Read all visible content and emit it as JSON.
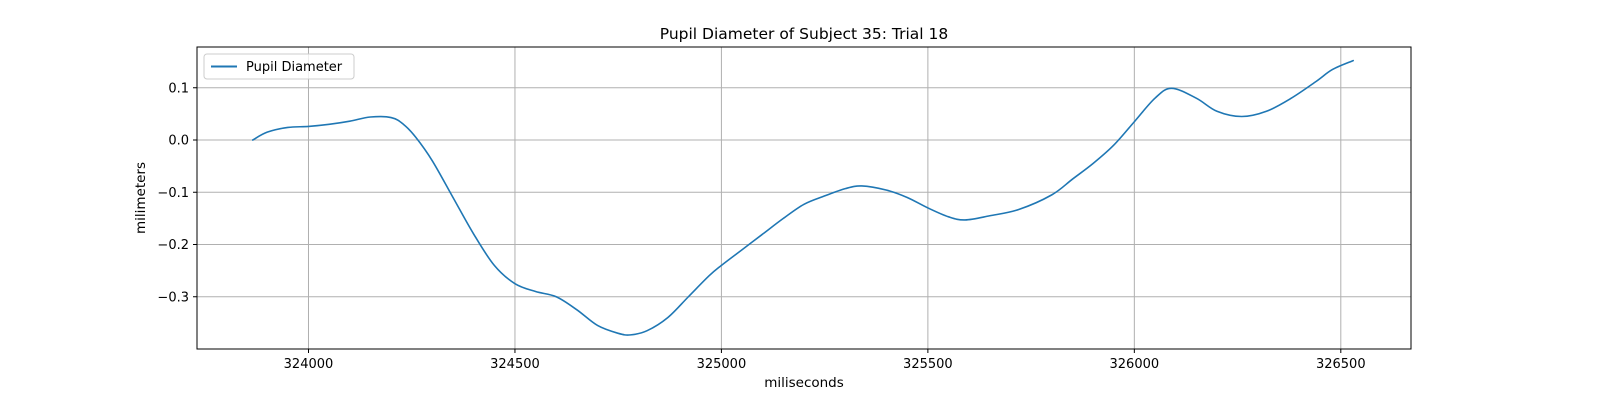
{
  "chart_data": {
    "type": "line",
    "title": "Pupil Diameter of Subject 35: Trial 18",
    "xlabel": "miliseconds",
    "ylabel": "milimeters",
    "xlim": [
      323730,
      326670
    ],
    "ylim": [
      -0.4,
      0.178
    ],
    "xticks": [
      324000,
      324500,
      325000,
      325500,
      326000,
      326500
    ],
    "xtick_labels": [
      "324000",
      "324500",
      "325000",
      "325500",
      "326000",
      "326500"
    ],
    "yticks": [
      0.1,
      0.0,
      -0.1,
      -0.2,
      -0.3
    ],
    "ytick_labels": [
      "0.1",
      "0.0",
      "−0.1",
      "−0.2",
      "−0.3"
    ],
    "grid": true,
    "legend_position": "upper-left",
    "series_color": "#1f77b4",
    "series": [
      {
        "name": "Pupil Diameter",
        "x": [
          323865,
          323900,
          323950,
          324000,
          324050,
          324100,
          324150,
          324200,
          324230,
          324260,
          324300,
          324350,
          324400,
          324450,
          324500,
          324550,
          324600,
          324650,
          324700,
          324750,
          324780,
          324820,
          324870,
          324920,
          324970,
          325000,
          325050,
          325100,
          325150,
          325200,
          325250,
          325300,
          325340,
          325400,
          325450,
          325500,
          325550,
          325590,
          325650,
          325720,
          325800,
          325850,
          325900,
          325950,
          326000,
          326050,
          326090,
          326150,
          326200,
          326260,
          326320,
          326380,
          326440,
          326480,
          326530
        ],
        "y": [
          0.0,
          0.015,
          0.024,
          0.026,
          0.03,
          0.036,
          0.044,
          0.043,
          0.03,
          0.005,
          -0.04,
          -0.11,
          -0.18,
          -0.24,
          -0.275,
          -0.29,
          -0.3,
          -0.325,
          -0.355,
          -0.37,
          -0.373,
          -0.365,
          -0.34,
          -0.3,
          -0.26,
          -0.24,
          -0.21,
          -0.18,
          -0.15,
          -0.123,
          -0.107,
          -0.093,
          -0.088,
          -0.096,
          -0.11,
          -0.13,
          -0.147,
          -0.153,
          -0.145,
          -0.133,
          -0.105,
          -0.075,
          -0.045,
          -0.01,
          0.035,
          0.08,
          0.099,
          0.08,
          0.055,
          0.045,
          0.055,
          0.08,
          0.112,
          0.135,
          0.152
        ]
      }
    ]
  }
}
